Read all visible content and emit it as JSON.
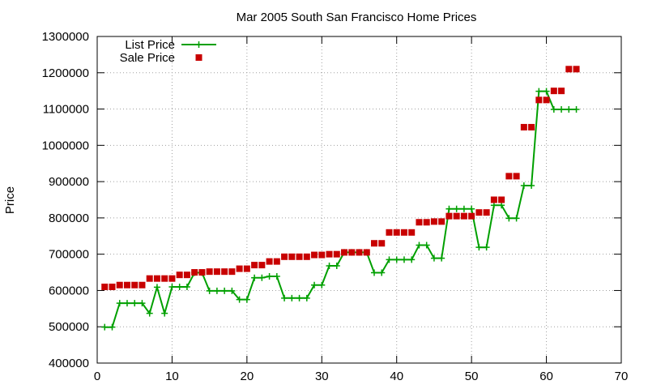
{
  "chart_data": {
    "type": "line",
    "title": "Mar 2005 South San Francisco Home Prices",
    "xlabel": "",
    "ylabel": "Price",
    "xlim": [
      0,
      70
    ],
    "ylim": [
      400000,
      1300000
    ],
    "x_ticks": [
      0,
      10,
      20,
      30,
      40,
      50,
      60,
      70
    ],
    "y_ticks": [
      400000,
      500000,
      600000,
      700000,
      800000,
      900000,
      1000000,
      1100000,
      1200000,
      1300000
    ],
    "grid": true,
    "legend_position": "top-left",
    "colors": {
      "list": "#00a000",
      "sale": "#c80000"
    },
    "series": [
      {
        "name": "List Price",
        "style": "line+cross",
        "x": [
          1,
          2,
          3,
          4,
          5,
          6,
          7,
          8,
          9,
          10,
          11,
          12,
          13,
          14,
          15,
          16,
          17,
          18,
          19,
          20,
          21,
          22,
          23,
          24,
          25,
          26,
          27,
          28,
          29,
          30,
          31,
          32,
          33,
          34,
          35,
          36,
          37,
          38,
          39,
          40,
          41,
          42,
          43,
          44,
          45,
          46,
          47,
          48,
          49,
          50,
          51,
          52,
          53,
          54,
          55,
          56,
          57,
          58,
          59,
          60,
          61,
          62,
          63,
          64
        ],
        "values": [
          499000,
          499000,
          565000,
          565000,
          565000,
          565000,
          537000,
          609000,
          537000,
          610000,
          610000,
          610000,
          649000,
          649000,
          599000,
          599000,
          599000,
          599000,
          575000,
          575000,
          635000,
          635000,
          639000,
          639000,
          579000,
          579000,
          579000,
          579000,
          615000,
          615000,
          668000,
          668000,
          705000,
          705000,
          705000,
          705000,
          649000,
          649000,
          685000,
          685000,
          685000,
          685000,
          725000,
          725000,
          689000,
          689000,
          825000,
          825000,
          825000,
          825000,
          719000,
          719000,
          835000,
          835000,
          799000,
          799000,
          889000,
          889000,
          1149000,
          1149000,
          1099000,
          1099000,
          1099000,
          1099000
        ]
      },
      {
        "name": "Sale Price",
        "style": "square",
        "x": [
          1,
          2,
          3,
          4,
          5,
          6,
          7,
          8,
          9,
          10,
          11,
          12,
          13,
          14,
          15,
          16,
          17,
          18,
          19,
          20,
          21,
          22,
          23,
          24,
          25,
          26,
          27,
          28,
          29,
          30,
          31,
          32,
          33,
          34,
          35,
          36,
          37,
          38,
          39,
          40,
          41,
          42,
          43,
          44,
          45,
          46,
          47,
          48,
          49,
          50,
          51,
          52,
          53,
          54,
          55,
          56,
          57,
          58,
          59,
          60,
          61,
          62,
          63,
          64
        ],
        "values": [
          610000,
          610000,
          615000,
          615000,
          615000,
          615000,
          633000,
          633000,
          633000,
          633000,
          643000,
          643000,
          650000,
          650000,
          652000,
          652000,
          652000,
          652000,
          660000,
          660000,
          670000,
          670000,
          680000,
          680000,
          693000,
          693000,
          693000,
          693000,
          698000,
          698000,
          700000,
          700000,
          705000,
          705000,
          705000,
          705000,
          730000,
          730000,
          760000,
          760000,
          760000,
          760000,
          788000,
          788000,
          790000,
          790000,
          805000,
          805000,
          805000,
          805000,
          815000,
          815000,
          850000,
          850000,
          915000,
          915000,
          1050000,
          1050000,
          1125000,
          1125000,
          1150000,
          1150000,
          1210000,
          1210000
        ]
      }
    ]
  }
}
